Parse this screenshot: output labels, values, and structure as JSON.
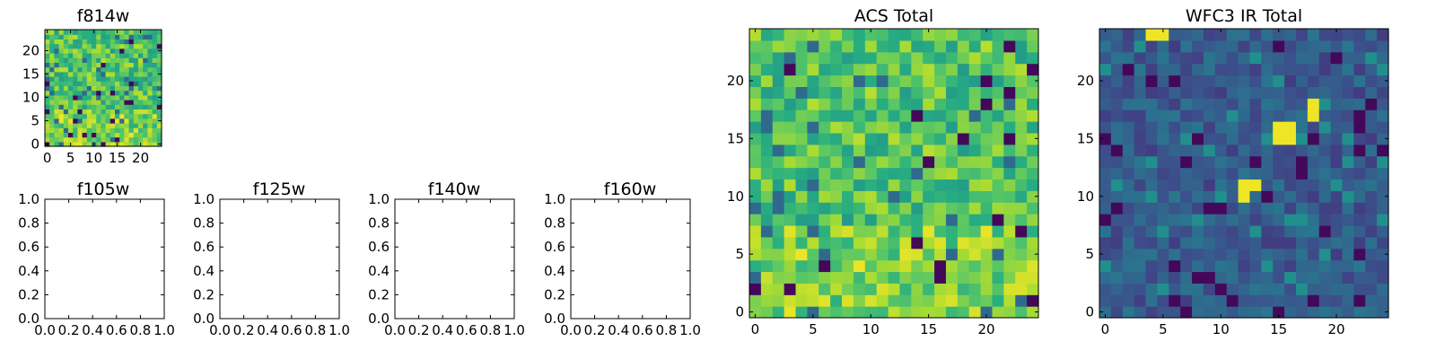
{
  "chart_data": [
    {
      "id": "f814w",
      "type": "heatmap",
      "title": "f814w",
      "colormap": "viridis",
      "grid_size": [
        25,
        25
      ],
      "xlim": [
        -0.5,
        24.5
      ],
      "ylim": [
        -0.5,
        24.5
      ],
      "xticks": [
        0,
        5,
        10,
        15,
        20
      ],
      "yticks": [
        0,
        5,
        10,
        15,
        20
      ],
      "pattern": "acs_like",
      "value_range": [
        0,
        1
      ]
    },
    {
      "id": "f105w",
      "type": "empty",
      "title": "f105w",
      "xlim": [
        0,
        1
      ],
      "ylim": [
        0,
        1
      ],
      "xticks": [
        "0.0",
        "0.2",
        "0.4",
        "0.6",
        "0.8",
        "1.0"
      ],
      "yticks": [
        "0.0",
        "0.2",
        "0.4",
        "0.6",
        "0.8",
        "1.0"
      ]
    },
    {
      "id": "f125w",
      "type": "empty",
      "title": "f125w",
      "xlim": [
        0,
        1
      ],
      "ylim": [
        0,
        1
      ],
      "xticks": [
        "0.0",
        "0.2",
        "0.4",
        "0.6",
        "0.8",
        "1.0"
      ],
      "yticks": [
        "0.0",
        "0.2",
        "0.4",
        "0.6",
        "0.8",
        "1.0"
      ]
    },
    {
      "id": "f140w",
      "type": "empty",
      "title": "f140w",
      "xlim": [
        0,
        1
      ],
      "ylim": [
        0,
        1
      ],
      "xticks": [
        "0.0",
        "0.2",
        "0.4",
        "0.6",
        "0.8",
        "1.0"
      ],
      "yticks": [
        "0.0",
        "0.2",
        "0.4",
        "0.6",
        "0.8",
        "1.0"
      ]
    },
    {
      "id": "f160w",
      "type": "empty",
      "title": "f160w",
      "xlim": [
        0,
        1
      ],
      "ylim": [
        0,
        1
      ],
      "xticks": [
        "0.0",
        "0.2",
        "0.4",
        "0.6",
        "0.8",
        "1.0"
      ],
      "yticks": [
        "0.0",
        "0.2",
        "0.4",
        "0.6",
        "0.8",
        "1.0"
      ]
    },
    {
      "id": "acs_total",
      "type": "heatmap",
      "title": "ACS Total",
      "colormap": "viridis",
      "grid_size": [
        25,
        25
      ],
      "xlim": [
        -0.5,
        24.5
      ],
      "ylim": [
        -0.5,
        24.5
      ],
      "xticks": [
        0,
        5,
        10,
        15,
        20
      ],
      "yticks": [
        0,
        5,
        10,
        15,
        20
      ],
      "pattern": "acs_like",
      "value_range": [
        0,
        1
      ]
    },
    {
      "id": "wfc3_ir_total",
      "type": "heatmap",
      "title": "WFC3 IR Total",
      "colormap": "viridis",
      "grid_size": [
        25,
        25
      ],
      "xlim": [
        -0.5,
        24.5
      ],
      "ylim": [
        -0.5,
        24.5
      ],
      "xticks": [
        0,
        5,
        10,
        15,
        20
      ],
      "yticks": [
        0,
        5,
        10,
        15,
        20
      ],
      "pattern": "ir_like",
      "value_range": [
        0,
        1
      ],
      "bright_pixels": [
        {
          "x": 4,
          "y": 24
        },
        {
          "x": 5,
          "y": 24
        },
        {
          "x": 15,
          "y": 15
        },
        {
          "x": 16,
          "y": 15
        },
        {
          "x": 15,
          "y": 16
        },
        {
          "x": 16,
          "y": 16
        },
        {
          "x": 18,
          "y": 18
        },
        {
          "x": 18,
          "y": 17
        },
        {
          "x": 12,
          "y": 11
        },
        {
          "x": 12,
          "y": 10
        },
        {
          "x": 13,
          "y": 11
        }
      ]
    }
  ]
}
